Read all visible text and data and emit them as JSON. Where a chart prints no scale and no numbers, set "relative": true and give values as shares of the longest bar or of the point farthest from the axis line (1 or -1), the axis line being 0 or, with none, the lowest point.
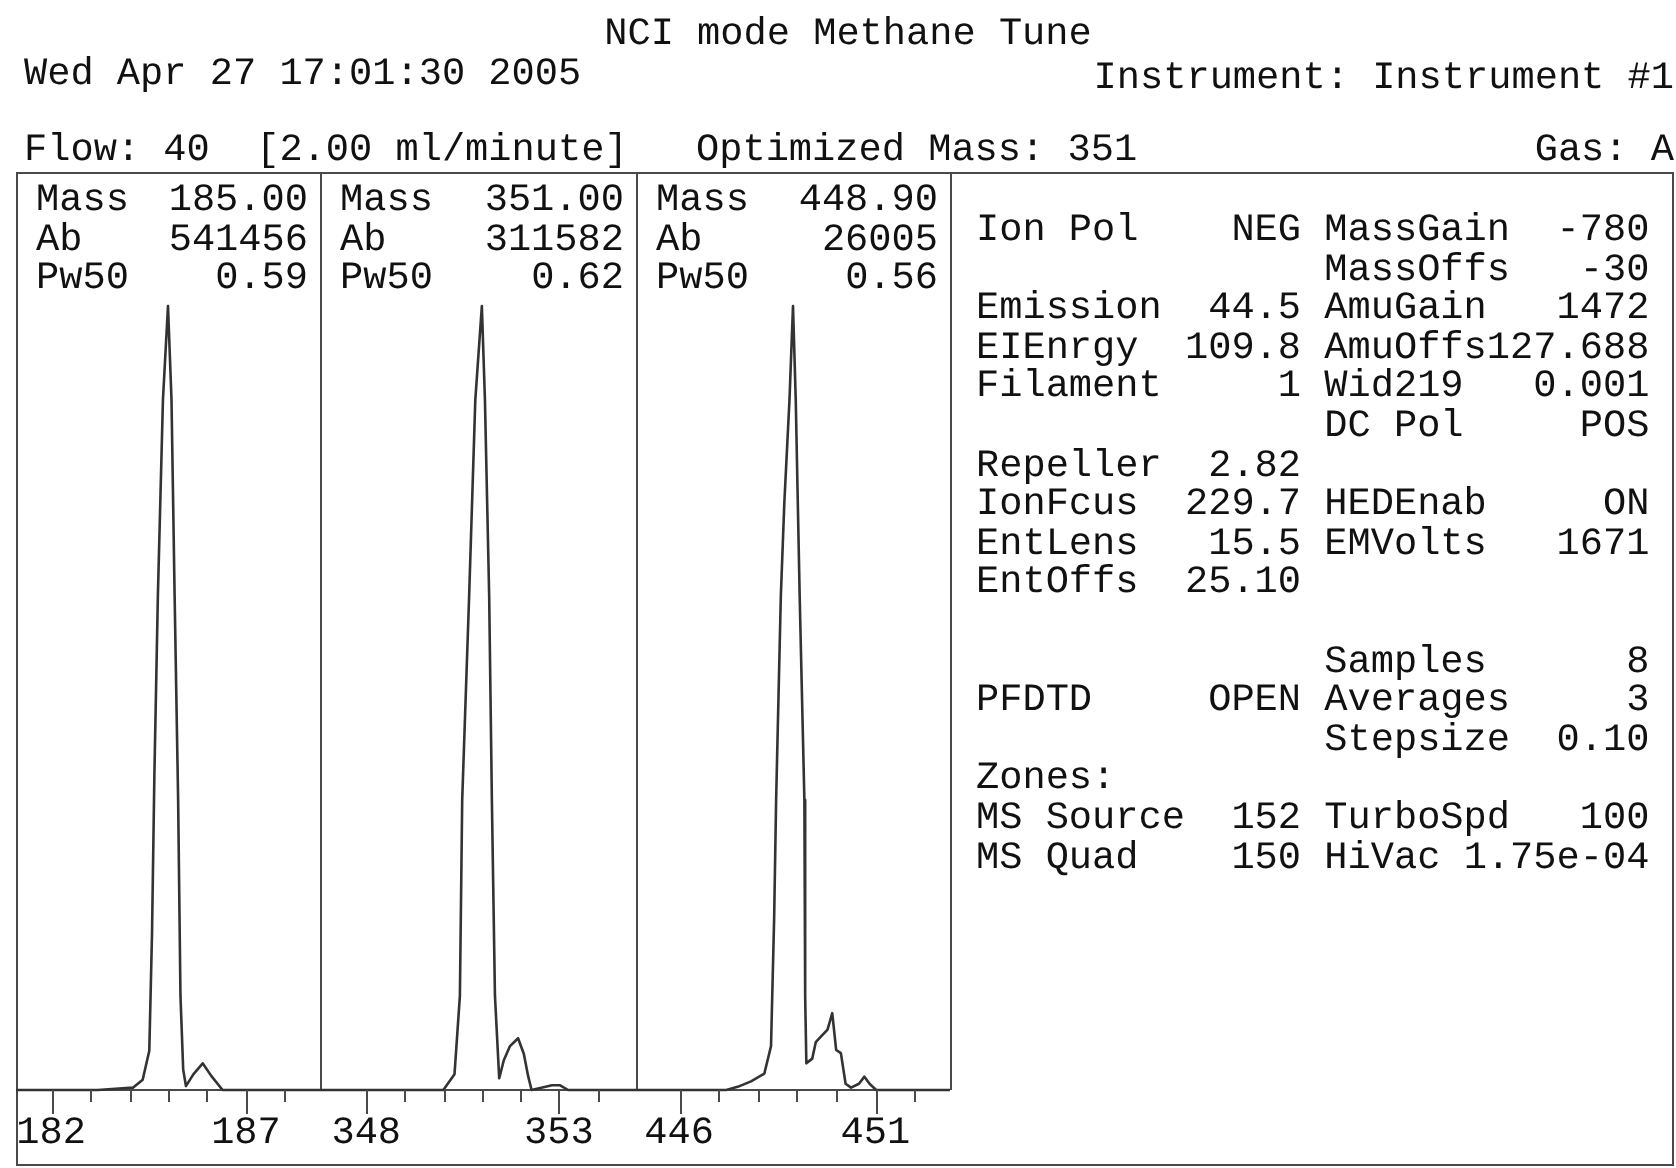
{
  "chart_data": [
    {
      "type": "other",
      "title": "NCI mode Methane Tune",
      "annotations": [
        "Wed Apr 27 17:01:30 2005",
        "Instrument: Instrument #1",
        "Flow: 40  [2.00 ml/minute]",
        "Optimized Mass: 351",
        "Gas: A"
      ]
    },
    {
      "type": "line",
      "relative": true,
      "tick_labels": "x",
      "color": "#333333",
      "annotations": [
        "Mass",
        "185.00",
        "Ab",
        "541456",
        "Pw50",
        "0.59"
      ],
      "x": [
        181.1,
        183.2,
        184.1,
        184.35,
        184.52,
        184.59,
        184.65,
        184.74,
        184.87,
        185.0,
        185.09,
        185.17,
        185.26,
        185.32,
        185.39,
        185.46,
        185.65,
        185.89,
        186.11,
        186.4,
        188.9
      ],
      "values": [
        0,
        0,
        0.003,
        0.013,
        0.05,
        0.2,
        0.4,
        0.63,
        0.88,
        1,
        0.88,
        0.63,
        0.37,
        0.12,
        0.026,
        0.005,
        0.02,
        0.034,
        0.018,
        0,
        0
      ],
      "xlim": [
        181.1,
        188.9
      ],
      "xticks": [
        182,
        {
          "value": 183,
          "label": null
        },
        {
          "value": 184,
          "label": null
        },
        {
          "value": 185,
          "label": null
        },
        {
          "value": 186,
          "label": null
        },
        187,
        {
          "value": 188,
          "label": null
        }
      ]
    },
    {
      "type": "line",
      "relative": true,
      "tick_labels": "x",
      "color": "#333333",
      "annotations": [
        "Mass",
        "351.00",
        "Ab",
        "311582",
        "Pw50",
        "0.62"
      ],
      "x": [
        346.8,
        350.0,
        350.29,
        350.43,
        350.49,
        350.67,
        350.83,
        351.0,
        351.08,
        351.19,
        351.26,
        351.34,
        351.45,
        351.57,
        351.73,
        351.94,
        352.09,
        352.2,
        352.29,
        352.82,
        353.03,
        353.24,
        355.0
      ],
      "values": [
        0,
        0,
        0.02,
        0.12,
        0.37,
        0.63,
        0.88,
        1,
        0.88,
        0.63,
        0.37,
        0.12,
        0.015,
        0.038,
        0.056,
        0.066,
        0.046,
        0.018,
        0,
        0.006,
        0.006,
        0,
        0
      ],
      "xlim": [
        346.8,
        355.0
      ],
      "xticks": [
        348,
        {
          "value": 349,
          "label": null
        },
        {
          "value": 350,
          "label": null
        },
        {
          "value": 351,
          "label": null
        },
        {
          "value": 352,
          "label": null
        },
        353,
        {
          "value": 354,
          "label": null
        }
      ]
    },
    {
      "type": "line",
      "relative": true,
      "tick_labels": "x",
      "color": "#333333",
      "annotations": [
        "Mass",
        "448.90",
        "Ab",
        "26005",
        "Pw50",
        "0.56"
      ],
      "x": [
        444.9,
        447.2,
        447.49,
        447.83,
        448.17,
        448.34,
        448.42,
        448.47,
        448.59,
        448.68,
        448.81,
        448.9,
        448.97,
        449.07,
        449.19,
        449.21,
        449.24,
        449.39,
        449.48,
        449.61,
        449.78,
        449.9,
        450.0,
        450.12,
        450.24,
        450.38,
        450.58,
        450.72,
        450.85,
        451.02,
        452.9
      ],
      "values": [
        0,
        0,
        0.004,
        0.011,
        0.021,
        0.056,
        0.22,
        0.37,
        0.63,
        0.75,
        0.88,
        1,
        0.88,
        0.63,
        0.37,
        0.12,
        0.034,
        0.04,
        0.061,
        0.068,
        0.077,
        0.098,
        0.051,
        0.047,
        0.008,
        0.003,
        0.008,
        0.017,
        0.008,
        0,
        0
      ],
      "xlim": [
        444.9,
        452.9
      ],
      "xticks": [
        446,
        {
          "value": 447,
          "label": null
        },
        {
          "value": 448,
          "label": null
        },
        {
          "value": 449,
          "label": null
        },
        {
          "value": 450,
          "label": null
        },
        451,
        {
          "value": 452,
          "label": null
        }
      ]
    },
    {
      "type": "other",
      "annotations": [
        "Ion Pol",
        "NEG",
        "MassGain",
        "-780",
        "MassOffs",
        "-30",
        "Emission",
        "44.5",
        "AmuGain",
        "1472",
        "EIEnrgy",
        "109.8",
        "AmuOffs",
        "127.688",
        "Filament",
        "1",
        "Wid219",
        "0.001",
        "DC Pol",
        "POS",
        "Repeller",
        "2.82",
        "IonFcus",
        "229.7",
        "HEDEnab",
        "ON",
        "EntLens",
        "15.5",
        "EMVolts",
        "1671",
        "EntOffs",
        "25.10",
        "Samples",
        "8",
        "PFDTD",
        "OPEN",
        "Averages",
        "3",
        "Stepsize",
        "0.10",
        "Zones:",
        "MS Source",
        "152",
        "TurboSpd",
        "100",
        "MS Quad",
        "150",
        "HiVac",
        "1.75e-04"
      ]
    }
  ]
}
